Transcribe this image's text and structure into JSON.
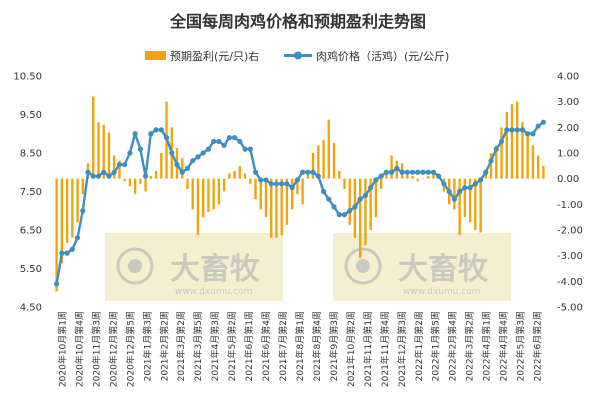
{
  "chart_data": {
    "type": "bar+line",
    "title": "全国每周肉鸡价格和预期盈利走势图",
    "legend": {
      "placement": "top",
      "items": [
        {
          "name": "预期盈利(元/只)右",
          "color": "#f0a30a",
          "marker": "bar"
        },
        {
          "name": "肉鸡价格（活鸡）(元/公斤)",
          "color": "#3e8ebf",
          "marker": "line"
        }
      ]
    },
    "left_axis": {
      "min": 4.5,
      "max": 10.5,
      "ticks": [
        "4.50",
        "5.50",
        "6.50",
        "7.50",
        "8.50",
        "9.50",
        "10.50"
      ]
    },
    "right_axis": {
      "min": -5.0,
      "max": 4.0,
      "ticks": [
        "-5.00",
        "-4.00",
        "-3.00",
        "-2.00",
        "-1.00",
        "0.00",
        "1.00",
        "2.00",
        "3.00",
        "4.00"
      ]
    },
    "x_labels": [
      "2020年10月第1周",
      "2020年10月第4周",
      "2020年11月第3周",
      "2020年12月第2周",
      "2020年12月第5周",
      "2021年1月第3周",
      "2021年2月第2周",
      "2021年3月第2周",
      "2021年3月第5周",
      "2021年4月第3周",
      "2021年5月第2周",
      "2021年6月第1周",
      "2021年6月第4周",
      "2021年7月第2周",
      "2021年8月第1周",
      "2021年8月第4周",
      "2021年9月第3周",
      "2021年10月第2周",
      "2021年11月第1周",
      "2021年11月第4周",
      "2021年12月第3周",
      "2022年1月第2周",
      "2022年1月第5周",
      "2022年2月第4周",
      "2022年3月第2周",
      "2022年4月第1周",
      "2022年4月第4周",
      "2022年5月第3周",
      "2022年6月第2周"
    ],
    "series": [
      {
        "name": "预期盈利(元/只)右",
        "axis": "right",
        "color": "#f0a30a",
        "values": [
          -4.4,
          -3.3,
          -2.5,
          -2.3,
          -1.7,
          -0.6,
          0.6,
          3.2,
          2.2,
          2.1,
          1.8,
          0.9,
          0.7,
          -0.1,
          -0.3,
          -0.6,
          -0.2,
          -0.5,
          0.1,
          0.3,
          1.0,
          3.0,
          2.0,
          1.2,
          0.8,
          -0.4,
          -1.2,
          -2.2,
          -1.5,
          -1.3,
          -1.2,
          -1.0,
          -0.5,
          0.2,
          0.3,
          0.5,
          0.2,
          -0.2,
          -0.8,
          -1.2,
          -1.5,
          -2.3,
          -2.3,
          -2.2,
          -1.8,
          -1.2,
          -0.6,
          -1.0,
          0.2,
          1.0,
          1.3,
          1.5,
          2.3,
          1.4,
          0.3,
          -0.4,
          -1.8,
          -2.3,
          -3.1,
          -2.6,
          -2.0,
          -1.5,
          -0.4,
          0.3,
          0.9,
          0.7,
          0.6,
          0.3,
          0.1,
          -0.1,
          0.0,
          0.1,
          0.2,
          0.0,
          -0.5,
          -1.0,
          -1.2,
          -2.2,
          -1.5,
          -1.7,
          -2.0,
          -2.1,
          0.3,
          1.0,
          1.3,
          2.0,
          2.6,
          2.9,
          3.0,
          2.2,
          1.8,
          1.3,
          0.9,
          0.5
        ]
      },
      {
        "name": "肉鸡价格（活鸡）(元/公斤)",
        "axis": "left",
        "color": "#3e8ebf",
        "values": [
          5.1,
          5.9,
          5.9,
          6.0,
          6.3,
          7.0,
          8.0,
          7.9,
          7.9,
          8.0,
          7.9,
          8.0,
          8.2,
          8.2,
          8.5,
          9.0,
          8.6,
          7.9,
          9.0,
          9.1,
          9.1,
          8.9,
          8.5,
          8.2,
          8.0,
          8.1,
          8.3,
          8.4,
          8.5,
          8.6,
          8.8,
          8.8,
          8.7,
          8.9,
          8.9,
          8.8,
          8.6,
          8.6,
          8.0,
          7.8,
          7.8,
          7.7,
          7.7,
          7.7,
          7.7,
          7.6,
          7.8,
          8.0,
          8.0,
          8.0,
          7.9,
          7.5,
          7.3,
          7.1,
          6.9,
          6.9,
          7.0,
          7.1,
          7.3,
          7.4,
          7.6,
          7.8,
          7.9,
          8.0,
          8.0,
          8.1,
          8.0,
          8.0,
          8.0,
          8.0,
          8.0,
          8.0,
          8.0,
          7.9,
          7.7,
          7.5,
          7.3,
          7.5,
          7.6,
          7.6,
          7.7,
          7.8,
          8.0,
          8.3,
          8.6,
          8.8,
          9.1,
          9.1,
          9.1,
          9.1,
          9.0,
          9.0,
          9.2,
          9.3
        ]
      }
    ],
    "grid": false
  },
  "watermark": {
    "brand": "大畜牧",
    "url": "www.dxumu.com",
    "icon": "eye-logo-icon"
  }
}
